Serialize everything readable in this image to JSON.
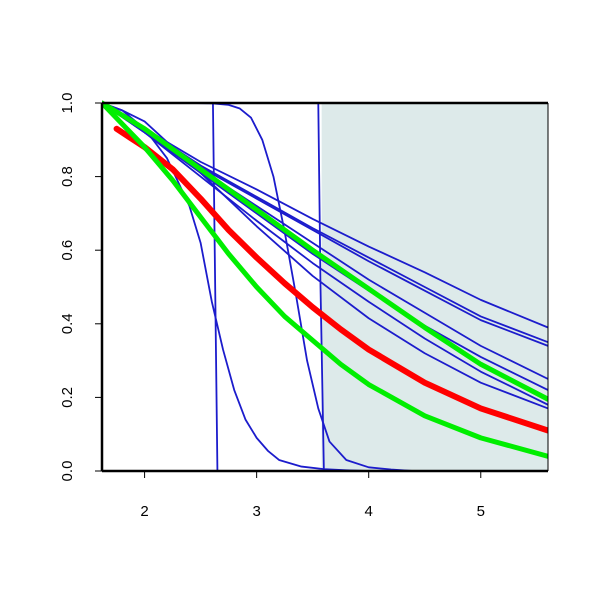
{
  "chart_data": {
    "type": "line",
    "title": "",
    "xlabel": "",
    "ylabel": "",
    "xlim": [
      1.62,
      5.6
    ],
    "ylim": [
      0.0,
      1.0
    ],
    "x_ticks": [
      2,
      3,
      4,
      5
    ],
    "x_tick_labels": [
      "2",
      "3",
      "4",
      "5"
    ],
    "y_ticks": [
      0.0,
      0.2,
      0.4,
      0.6,
      0.8,
      1.0
    ],
    "y_tick_labels": [
      "0.0",
      "0.2",
      "0.4",
      "0.6",
      "0.8",
      "1.0"
    ],
    "grid": false,
    "legend": "none",
    "shaded_region": {
      "x_from": 3.58,
      "x_to": 5.6,
      "color": "#ddeaea"
    },
    "colors": {
      "blue": "#1c1ccc",
      "red": "#ff0000",
      "green": "#00ee00",
      "axis": "#000000"
    },
    "series": [
      {
        "color": "blue",
        "width": 1.8,
        "x": [
          1.62,
          2.61,
          2.63,
          2.65,
          5.6
        ],
        "y": [
          1.0,
          1.0,
          0.5,
          0.0,
          0.0
        ]
      },
      {
        "color": "blue",
        "width": 1.8,
        "x": [
          1.62,
          3.55,
          3.57,
          3.6,
          5.6
        ],
        "y": [
          1.0,
          1.0,
          0.5,
          0.0,
          0.0
        ]
      },
      {
        "color": "blue",
        "width": 1.8,
        "x": [
          1.62,
          2.4,
          2.6,
          2.75,
          2.85,
          2.95,
          3.05,
          3.15,
          3.25,
          3.35,
          3.45,
          3.55,
          3.65,
          3.8,
          4.0,
          4.2,
          4.4,
          5.6
        ],
        "y": [
          1.0,
          1.0,
          0.999,
          0.995,
          0.985,
          0.96,
          0.9,
          0.8,
          0.65,
          0.48,
          0.3,
          0.17,
          0.08,
          0.03,
          0.01,
          0.004,
          0.0,
          0.0
        ]
      },
      {
        "color": "blue",
        "width": 1.8,
        "x": [
          1.62,
          1.8,
          2.0,
          2.2,
          2.4,
          2.5,
          2.6,
          2.7,
          2.8,
          2.9,
          3.0,
          3.1,
          3.2,
          3.4,
          3.6,
          3.8,
          4.0,
          5.6
        ],
        "y": [
          1.0,
          0.98,
          0.93,
          0.85,
          0.72,
          0.62,
          0.46,
          0.33,
          0.22,
          0.14,
          0.09,
          0.055,
          0.03,
          0.012,
          0.005,
          0.002,
          0.0,
          0.0
        ]
      },
      {
        "color": "blue",
        "width": 1.8,
        "x": [
          1.62,
          2.0,
          2.5,
          3.0,
          3.5,
          4.0,
          4.5,
          5.0,
          5.6
        ],
        "y": [
          1.0,
          0.93,
          0.84,
          0.765,
          0.685,
          0.61,
          0.54,
          0.465,
          0.39
        ]
      },
      {
        "color": "blue",
        "width": 1.8,
        "x": [
          1.62,
          2.0,
          2.5,
          3.0,
          3.5,
          4.0,
          4.5,
          5.0,
          5.6
        ],
        "y": [
          1.0,
          0.93,
          0.83,
          0.745,
          0.66,
          0.58,
          0.5,
          0.42,
          0.35
        ]
      },
      {
        "color": "blue",
        "width": 1.8,
        "x": [
          1.62,
          2.0,
          2.5,
          3.0,
          3.5,
          4.0,
          4.5,
          5.0,
          5.6
        ],
        "y": [
          1.0,
          0.925,
          0.825,
          0.74,
          0.655,
          0.57,
          0.49,
          0.41,
          0.34
        ]
      },
      {
        "color": "blue",
        "width": 1.8,
        "x": [
          1.62,
          2.0,
          2.5,
          3.0,
          3.5,
          4.0,
          4.5,
          5.0,
          5.6
        ],
        "y": [
          1.0,
          0.92,
          0.82,
          0.72,
          0.62,
          0.52,
          0.43,
          0.34,
          0.25
        ]
      },
      {
        "color": "blue",
        "width": 1.8,
        "x": [
          1.62,
          2.0,
          2.5,
          3.0,
          3.5,
          4.0,
          4.5,
          5.0,
          5.6
        ],
        "y": [
          1.0,
          0.92,
          0.81,
          0.7,
          0.59,
          0.49,
          0.395,
          0.31,
          0.22
        ]
      },
      {
        "color": "blue",
        "width": 1.8,
        "x": [
          1.62,
          2.0,
          2.5,
          3.0,
          3.5,
          4.0,
          4.5,
          5.0,
          5.6
        ],
        "y": [
          1.0,
          0.92,
          0.8,
          0.68,
          0.565,
          0.46,
          0.36,
          0.27,
          0.18
        ]
      },
      {
        "color": "blue",
        "width": 1.8,
        "x": [
          1.62,
          1.8,
          2.0,
          2.5,
          3.0,
          3.5,
          4.0,
          4.5,
          5.0,
          5.6
        ],
        "y": [
          1.0,
          0.98,
          0.95,
          0.81,
          0.665,
          0.53,
          0.415,
          0.32,
          0.24,
          0.17
        ]
      },
      {
        "color": "green",
        "width": 5,
        "x": [
          1.62,
          2.0,
          2.5,
          3.0,
          3.5,
          4.0,
          4.5,
          5.0,
          5.6
        ],
        "y": [
          1.0,
          0.93,
          0.82,
          0.71,
          0.6,
          0.495,
          0.39,
          0.29,
          0.195
        ]
      },
      {
        "color": "red",
        "width": 6,
        "x": [
          1.75,
          2.0,
          2.25,
          2.5,
          2.75,
          3.0,
          3.25,
          3.5,
          3.75,
          4.0,
          4.5,
          5.0,
          5.6
        ],
        "y": [
          0.93,
          0.88,
          0.82,
          0.74,
          0.655,
          0.58,
          0.51,
          0.445,
          0.385,
          0.33,
          0.24,
          0.17,
          0.11
        ]
      },
      {
        "color": "green",
        "width": 5,
        "x": [
          1.62,
          2.0,
          2.25,
          2.5,
          2.75,
          3.0,
          3.25,
          3.5,
          3.75,
          4.0,
          4.5,
          5.0,
          5.6
        ],
        "y": [
          1.0,
          0.88,
          0.79,
          0.69,
          0.59,
          0.5,
          0.42,
          0.355,
          0.29,
          0.235,
          0.15,
          0.09,
          0.04
        ]
      }
    ]
  }
}
